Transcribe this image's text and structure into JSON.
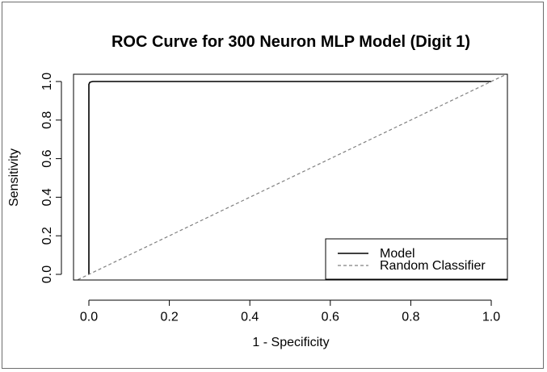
{
  "chart_data": {
    "type": "line",
    "title": "ROC Curve for 300 Neuron MLP Model (Digit 1)",
    "xlabel": "1 - Specificity",
    "ylabel": "Sensitivity",
    "xlim": [
      -0.04,
      1.04
    ],
    "ylim": [
      -0.02,
      1.02
    ],
    "x_ticks": [
      0.0,
      0.2,
      0.4,
      0.6,
      0.8,
      1.0
    ],
    "x_tick_labels": [
      "0.0",
      "0.2",
      "0.4",
      "0.6",
      "0.8",
      "1.0"
    ],
    "y_ticks": [
      0.0,
      0.2,
      0.4,
      0.6,
      0.8,
      1.0
    ],
    "y_tick_labels": [
      "0.0",
      "0.2",
      "0.4",
      "0.6",
      "0.8",
      "1.0"
    ],
    "grid": false,
    "legend_position": "bottom-right",
    "series": [
      {
        "name": "Model",
        "style": "solid",
        "color": "#000000",
        "x": [
          0.0,
          0.0,
          0.002,
          0.005,
          0.01,
          0.05,
          0.1,
          0.3,
          0.5,
          0.7,
          1.0
        ],
        "y": [
          0.0,
          0.985,
          0.995,
          0.998,
          1.0,
          1.0,
          1.0,
          1.0,
          1.0,
          1.0,
          1.0
        ]
      },
      {
        "name": "Random Classifier",
        "style": "dashed",
        "color": "#808080",
        "x": [
          -0.04,
          1.04
        ],
        "y": [
          -0.04,
          1.04
        ]
      }
    ]
  }
}
